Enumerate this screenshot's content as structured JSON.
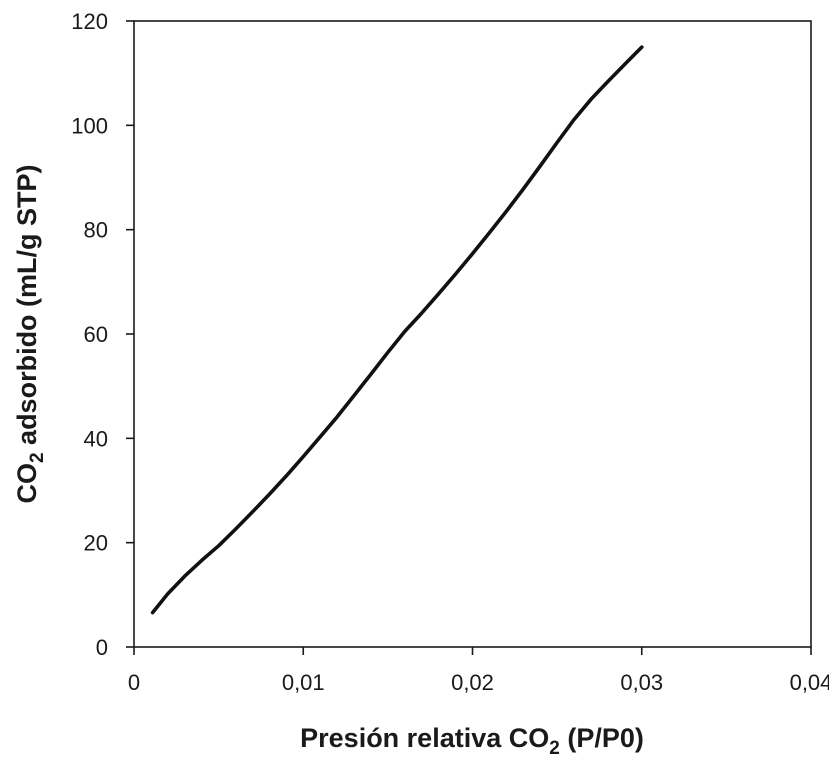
{
  "chart_data": {
    "type": "line",
    "title": "",
    "xlabel": "Presión relativa CO2 (P/P0)",
    "xlabel_parts": {
      "pre": "Presión relativa CO",
      "sub": "2",
      "post": " (P/P0)"
    },
    "ylabel": "CO2 adsorbido (mL/g STP)",
    "ylabel_parts": {
      "pre": "CO",
      "sub": "2",
      "post": " adsorbido (mL/g STP)"
    },
    "xlim": [
      0,
      0.04
    ],
    "ylim": [
      0,
      120
    ],
    "x_ticks": [
      0,
      0.01,
      0.02,
      0.03,
      0.04
    ],
    "x_tick_labels": [
      "0",
      "0,01",
      "0,02",
      "0,03",
      "0,04"
    ],
    "y_ticks": [
      0,
      20,
      40,
      60,
      80,
      100,
      120
    ],
    "y_tick_labels": [
      "0",
      "20",
      "40",
      "60",
      "80",
      "100",
      "120"
    ],
    "grid": false,
    "legend": "none",
    "series": [
      {
        "color": "#111111",
        "x": [
          0.0011,
          0.002,
          0.003,
          0.004,
          0.005,
          0.006,
          0.007,
          0.008,
          0.009,
          0.01,
          0.011,
          0.012,
          0.013,
          0.014,
          0.015,
          0.016,
          0.017,
          0.018,
          0.019,
          0.02,
          0.021,
          0.022,
          0.023,
          0.024,
          0.025,
          0.026,
          0.027,
          0.028,
          0.029,
          0.03
        ],
        "y": [
          6.6,
          10.2,
          13.6,
          16.6,
          19.4,
          22.6,
          25.9,
          29.3,
          32.8,
          36.5,
          40.3,
          44.1,
          48.2,
          52.3,
          56.5,
          60.5,
          64.0,
          67.7,
          71.5,
          75.4,
          79.4,
          83.5,
          87.8,
          92.2,
          96.7,
          101.1,
          105.0,
          108.4,
          111.7,
          115.0
        ]
      }
    ]
  }
}
